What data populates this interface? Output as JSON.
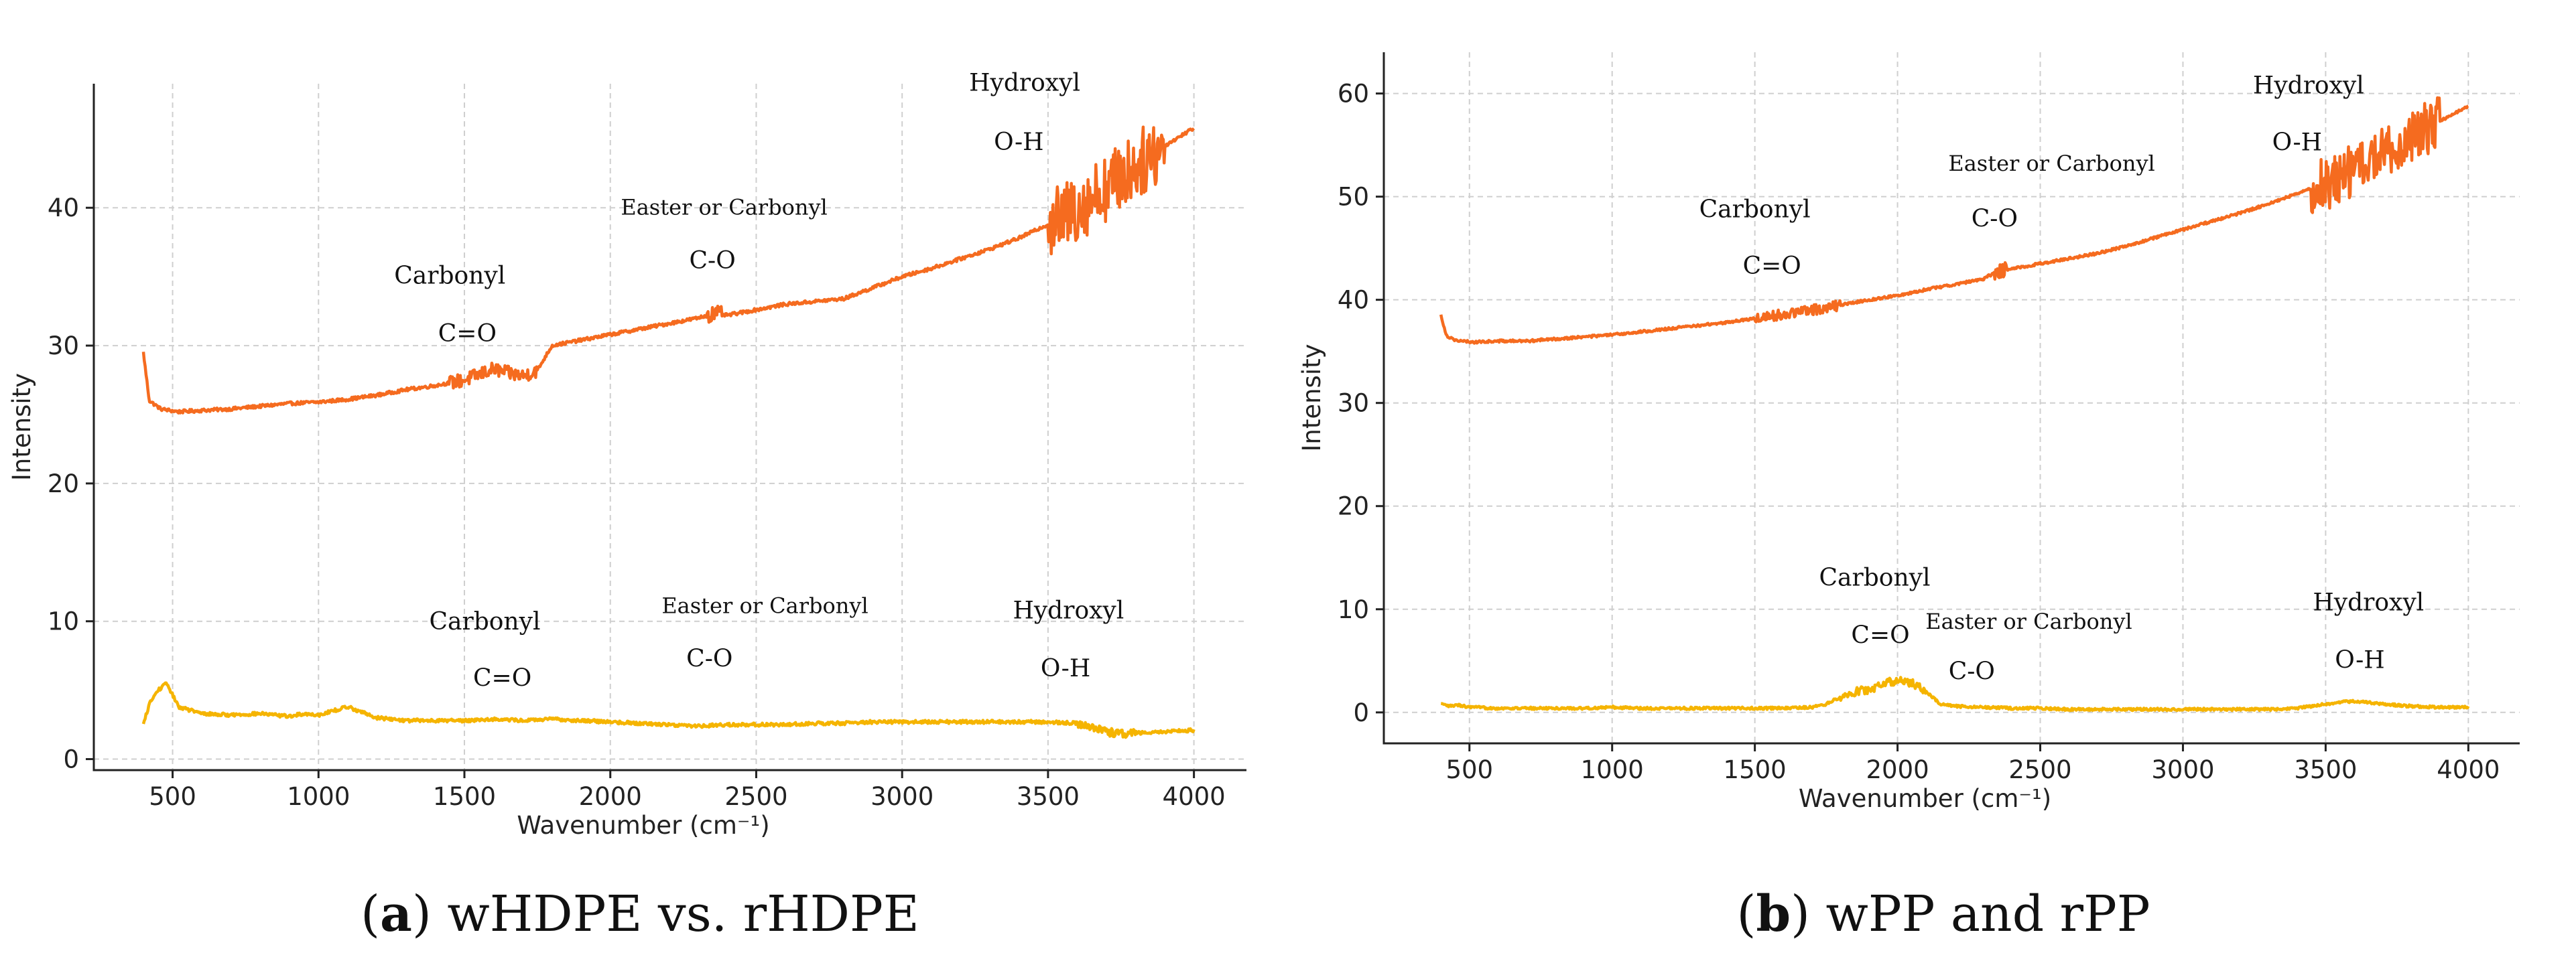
{
  "chart_data": [
    {
      "type": "line",
      "panel": "a",
      "caption_letter": "a",
      "caption_text": " wHDPE vs. rHDPE",
      "xlabel": "Wavenumber (cm⁻¹)",
      "ylabel": "Intensity",
      "xlim": [
        230,
        4180
      ],
      "ylim": [
        -0.8,
        49
      ],
      "xticks": [
        500,
        1000,
        1500,
        2000,
        2500,
        3000,
        3500,
        4000
      ],
      "yticks": [
        0,
        10,
        20,
        30,
        40
      ],
      "grid": true,
      "series": [
        {
          "name": "upper",
          "color": "#f56b1f",
          "x": [
            400,
            420,
            460,
            520,
            600,
            700,
            800,
            900,
            1000,
            1100,
            1200,
            1300,
            1400,
            1500,
            1550,
            1600,
            1650,
            1700,
            1750,
            1800,
            1850,
            1900,
            2000,
            2100,
            2200,
            2300,
            2350,
            2400,
            2500,
            2600,
            2700,
            2800,
            2900,
            3000,
            3100,
            3200,
            3300,
            3400,
            3500,
            3550,
            3600,
            3700,
            3800,
            3900,
            4000
          ],
          "values": [
            29.5,
            26,
            25.4,
            25.2,
            25.3,
            25.4,
            25.6,
            25.8,
            25.9,
            26.1,
            26.4,
            26.8,
            27.1,
            27.5,
            27.9,
            28.3,
            28.0,
            27.8,
            28.2,
            30.0,
            30.2,
            30.4,
            30.8,
            31.2,
            31.6,
            32.0,
            32.3,
            32.2,
            32.6,
            33.0,
            33.2,
            33.4,
            34.2,
            35.0,
            35.6,
            36.3,
            37.0,
            37.8,
            38.8,
            39.3,
            40.0,
            41.5,
            43.0,
            44.5,
            45.8
          ],
          "noise_regions": [
            [
              3500,
              3900,
              2.5
            ],
            [
              1450,
              1750,
              0.5
            ],
            [
              2330,
              2380,
              0.6
            ]
          ]
        },
        {
          "name": "lower",
          "color": "#f5b400",
          "x": [
            400,
            420,
            450,
            480,
            520,
            600,
            700,
            800,
            900,
            950,
            1000,
            1100,
            1200,
            1300,
            1400,
            1500,
            1600,
            1700,
            1800,
            1900,
            2000,
            2100,
            2200,
            2300,
            2400,
            2500,
            2600,
            2700,
            2800,
            2900,
            3000,
            3100,
            3200,
            3300,
            3400,
            3500,
            3600,
            3650,
            3700,
            3750,
            3800,
            3900,
            4000
          ],
          "values": [
            2.5,
            4.0,
            5.0,
            5.5,
            3.8,
            3.3,
            3.2,
            3.3,
            3.1,
            3.3,
            3.2,
            3.8,
            3.0,
            2.8,
            2.8,
            2.8,
            2.9,
            2.8,
            2.9,
            2.8,
            2.7,
            2.6,
            2.5,
            2.4,
            2.5,
            2.5,
            2.5,
            2.6,
            2.6,
            2.7,
            2.7,
            2.7,
            2.7,
            2.7,
            2.7,
            2.7,
            2.6,
            2.3,
            2.0,
            1.8,
            1.9,
            2.0,
            2.1
          ],
          "noise_regions": [
            [
              3600,
              3800,
              0.3
            ]
          ]
        }
      ],
      "annotations": [
        {
          "text": "Carbonyl",
          "x": 1450,
          "y": 34.5,
          "size": "lg"
        },
        {
          "text": "C=O",
          "x": 1510,
          "y": 30.3,
          "size": "lg"
        },
        {
          "text": "Easter or Carbonyl",
          "x": 2390,
          "y": 39.5,
          "size": "sm"
        },
        {
          "text": "C-O",
          "x": 2350,
          "y": 35.6,
          "size": "lg"
        },
        {
          "text": "Hydroxyl",
          "x": 3420,
          "y": 48.5,
          "size": "lg"
        },
        {
          "text": "O-H",
          "x": 3400,
          "y": 44.2,
          "size": "lg"
        },
        {
          "text": "Carbonyl",
          "x": 1570,
          "y": 9.4,
          "size": "lg"
        },
        {
          "text": "C=O",
          "x": 1630,
          "y": 5.3,
          "size": "lg"
        },
        {
          "text": "Easter or Carbonyl",
          "x": 2530,
          "y": 10.6,
          "size": "sm"
        },
        {
          "text": "C-O",
          "x": 2340,
          "y": 6.7,
          "size": "lg"
        },
        {
          "text": "Hydroxyl",
          "x": 3570,
          "y": 10.2,
          "size": "lg"
        },
        {
          "text": "O-H",
          "x": 3560,
          "y": 6.0,
          "size": "lg"
        }
      ]
    },
    {
      "type": "line",
      "panel": "b",
      "caption_letter": "b",
      "caption_text": " wPP and rPP",
      "xlabel": "Wavenumber (cm⁻¹)",
      "ylabel": "Intensity",
      "xlim": [
        200,
        4180
      ],
      "ylim": [
        -3,
        64
      ],
      "xticks": [
        500,
        1000,
        1500,
        2000,
        2500,
        3000,
        3500,
        4000
      ],
      "yticks": [
        0,
        10,
        20,
        30,
        40,
        50,
        60
      ],
      "grid": true,
      "series": [
        {
          "name": "upper",
          "color": "#f56b1f",
          "x": [
            400,
            420,
            460,
            520,
            600,
            700,
            800,
            900,
            1000,
            1100,
            1200,
            1300,
            1400,
            1500,
            1600,
            1700,
            1800,
            1900,
            2000,
            2100,
            2200,
            2300,
            2350,
            2400,
            2500,
            2600,
            2700,
            2800,
            2900,
            3000,
            3100,
            3200,
            3300,
            3400,
            3500,
            3600,
            3700,
            3800,
            3900,
            4000
          ],
          "values": [
            38.5,
            36.5,
            36.0,
            35.9,
            36.0,
            36.0,
            36.2,
            36.4,
            36.6,
            36.9,
            37.2,
            37.5,
            37.8,
            38.2,
            38.6,
            39.0,
            39.5,
            40.0,
            40.4,
            41.0,
            41.5,
            42.0,
            42.8,
            43.0,
            43.5,
            44.0,
            44.5,
            45.2,
            46.0,
            46.8,
            47.6,
            48.4,
            49.3,
            50.3,
            51.3,
            52.6,
            54.0,
            55.8,
            57.3,
            58.8
          ],
          "noise_regions": [
            [
              3450,
              3900,
              2.6
            ],
            [
              1500,
              1800,
              0.5
            ],
            [
              2340,
              2380,
              0.7
            ]
          ]
        },
        {
          "name": "lower",
          "color": "#f5b400",
          "x": [
            400,
            430,
            460,
            500,
            600,
            700,
            800,
            900,
            1000,
            1100,
            1200,
            1300,
            1400,
            1500,
            1600,
            1700,
            1750,
            1800,
            1850,
            1900,
            1950,
            2000,
            2050,
            2100,
            2150,
            2200,
            2300,
            2400,
            2500,
            2600,
            2700,
            2800,
            2900,
            3000,
            3100,
            3200,
            3300,
            3400,
            3500,
            3550,
            3600,
            3700,
            3800,
            3900,
            4000
          ],
          "values": [
            0.8,
            0.6,
            0.7,
            0.5,
            0.4,
            0.4,
            0.4,
            0.4,
            0.5,
            0.4,
            0.4,
            0.4,
            0.4,
            0.4,
            0.4,
            0.5,
            0.8,
            1.5,
            2.0,
            2.2,
            2.8,
            3.1,
            2.9,
            2.0,
            0.8,
            0.6,
            0.5,
            0.4,
            0.4,
            0.3,
            0.3,
            0.3,
            0.3,
            0.3,
            0.3,
            0.3,
            0.3,
            0.4,
            0.8,
            1.0,
            1.1,
            0.8,
            0.6,
            0.5,
            0.5
          ],
          "noise_regions": [
            [
              1800,
              2100,
              0.4
            ]
          ]
        }
      ],
      "annotations": [
        {
          "text": "Carbonyl",
          "x": 1500,
          "y": 48.0,
          "size": "lg"
        },
        {
          "text": "C=O",
          "x": 1560,
          "y": 42.5,
          "size": "lg"
        },
        {
          "text": "Easter or Carbonyl",
          "x": 2540,
          "y": 52.5,
          "size": "sm"
        },
        {
          "text": "C-O",
          "x": 2340,
          "y": 47.1,
          "size": "lg"
        },
        {
          "text": "Hydroxyl",
          "x": 3440,
          "y": 60.0,
          "size": "lg"
        },
        {
          "text": "O-H",
          "x": 3400,
          "y": 54.5,
          "size": "lg"
        },
        {
          "text": "Carbonyl",
          "x": 1920,
          "y": 12.3,
          "size": "lg"
        },
        {
          "text": "C=O",
          "x": 1940,
          "y": 6.7,
          "size": "lg"
        },
        {
          "text": "Easter or Carbonyl",
          "x": 2460,
          "y": 8.1,
          "size": "sm"
        },
        {
          "text": "C-O",
          "x": 2260,
          "y": 3.2,
          "size": "lg"
        },
        {
          "text": "Hydroxyl",
          "x": 3650,
          "y": 9.9,
          "size": "lg"
        },
        {
          "text": "O-H",
          "x": 3620,
          "y": 4.3,
          "size": "lg"
        }
      ]
    }
  ]
}
